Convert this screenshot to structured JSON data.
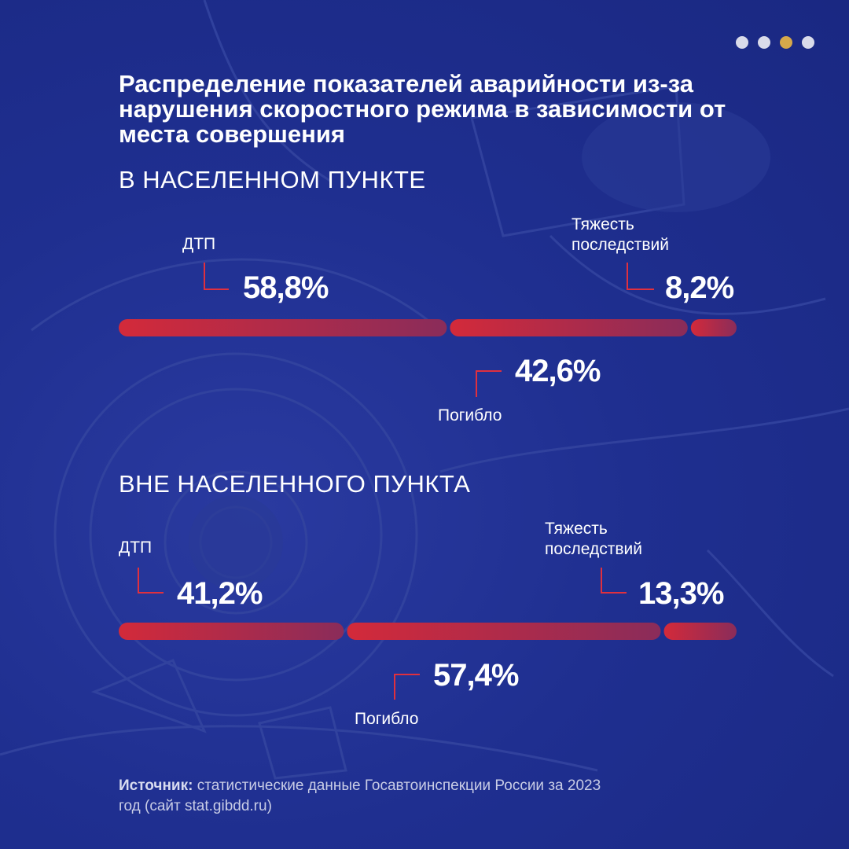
{
  "pager": {
    "count": 4,
    "active": 2,
    "colors": {
      "active": "#d6a84a",
      "inactive": "#d9dbea"
    }
  },
  "title": "Распределение показателей аварийности из-за нарушения скоростного режима в зависимости от места совершения",
  "chart_data": [
    {
      "type": "bar",
      "section_title": "В НАСЕЛЕННОМ ПУНКТЕ",
      "segments": [
        {
          "name": "ДТП",
          "value": 58.8,
          "label": "58,8%"
        },
        {
          "name": "Погибло",
          "value": 42.6,
          "label": "42,6%"
        },
        {
          "name": "Тяжесть последствий",
          "value": 8.2,
          "label": "8,2%"
        }
      ]
    },
    {
      "type": "bar",
      "section_title": "ВНЕ НАСЕЛЕННОГО ПУНКТА",
      "segments": [
        {
          "name": "ДТП",
          "value": 41.2,
          "label": "41,2%"
        },
        {
          "name": "Погибло",
          "value": 57.4,
          "label": "57,4%"
        },
        {
          "name": "Тяжесть последствий",
          "value": 13.3,
          "label": "13,3%"
        }
      ]
    }
  ],
  "source": {
    "prefix": "Источник:",
    "text": " статистические данные Госавтоинспекции России за 2023 год (сайт stat.gibdd.ru)"
  },
  "colors": {
    "bar_start": "#d32a3a",
    "bar_end": "#8a2c5a",
    "leader": "#e0303e",
    "background": "#1f2f8f"
  }
}
